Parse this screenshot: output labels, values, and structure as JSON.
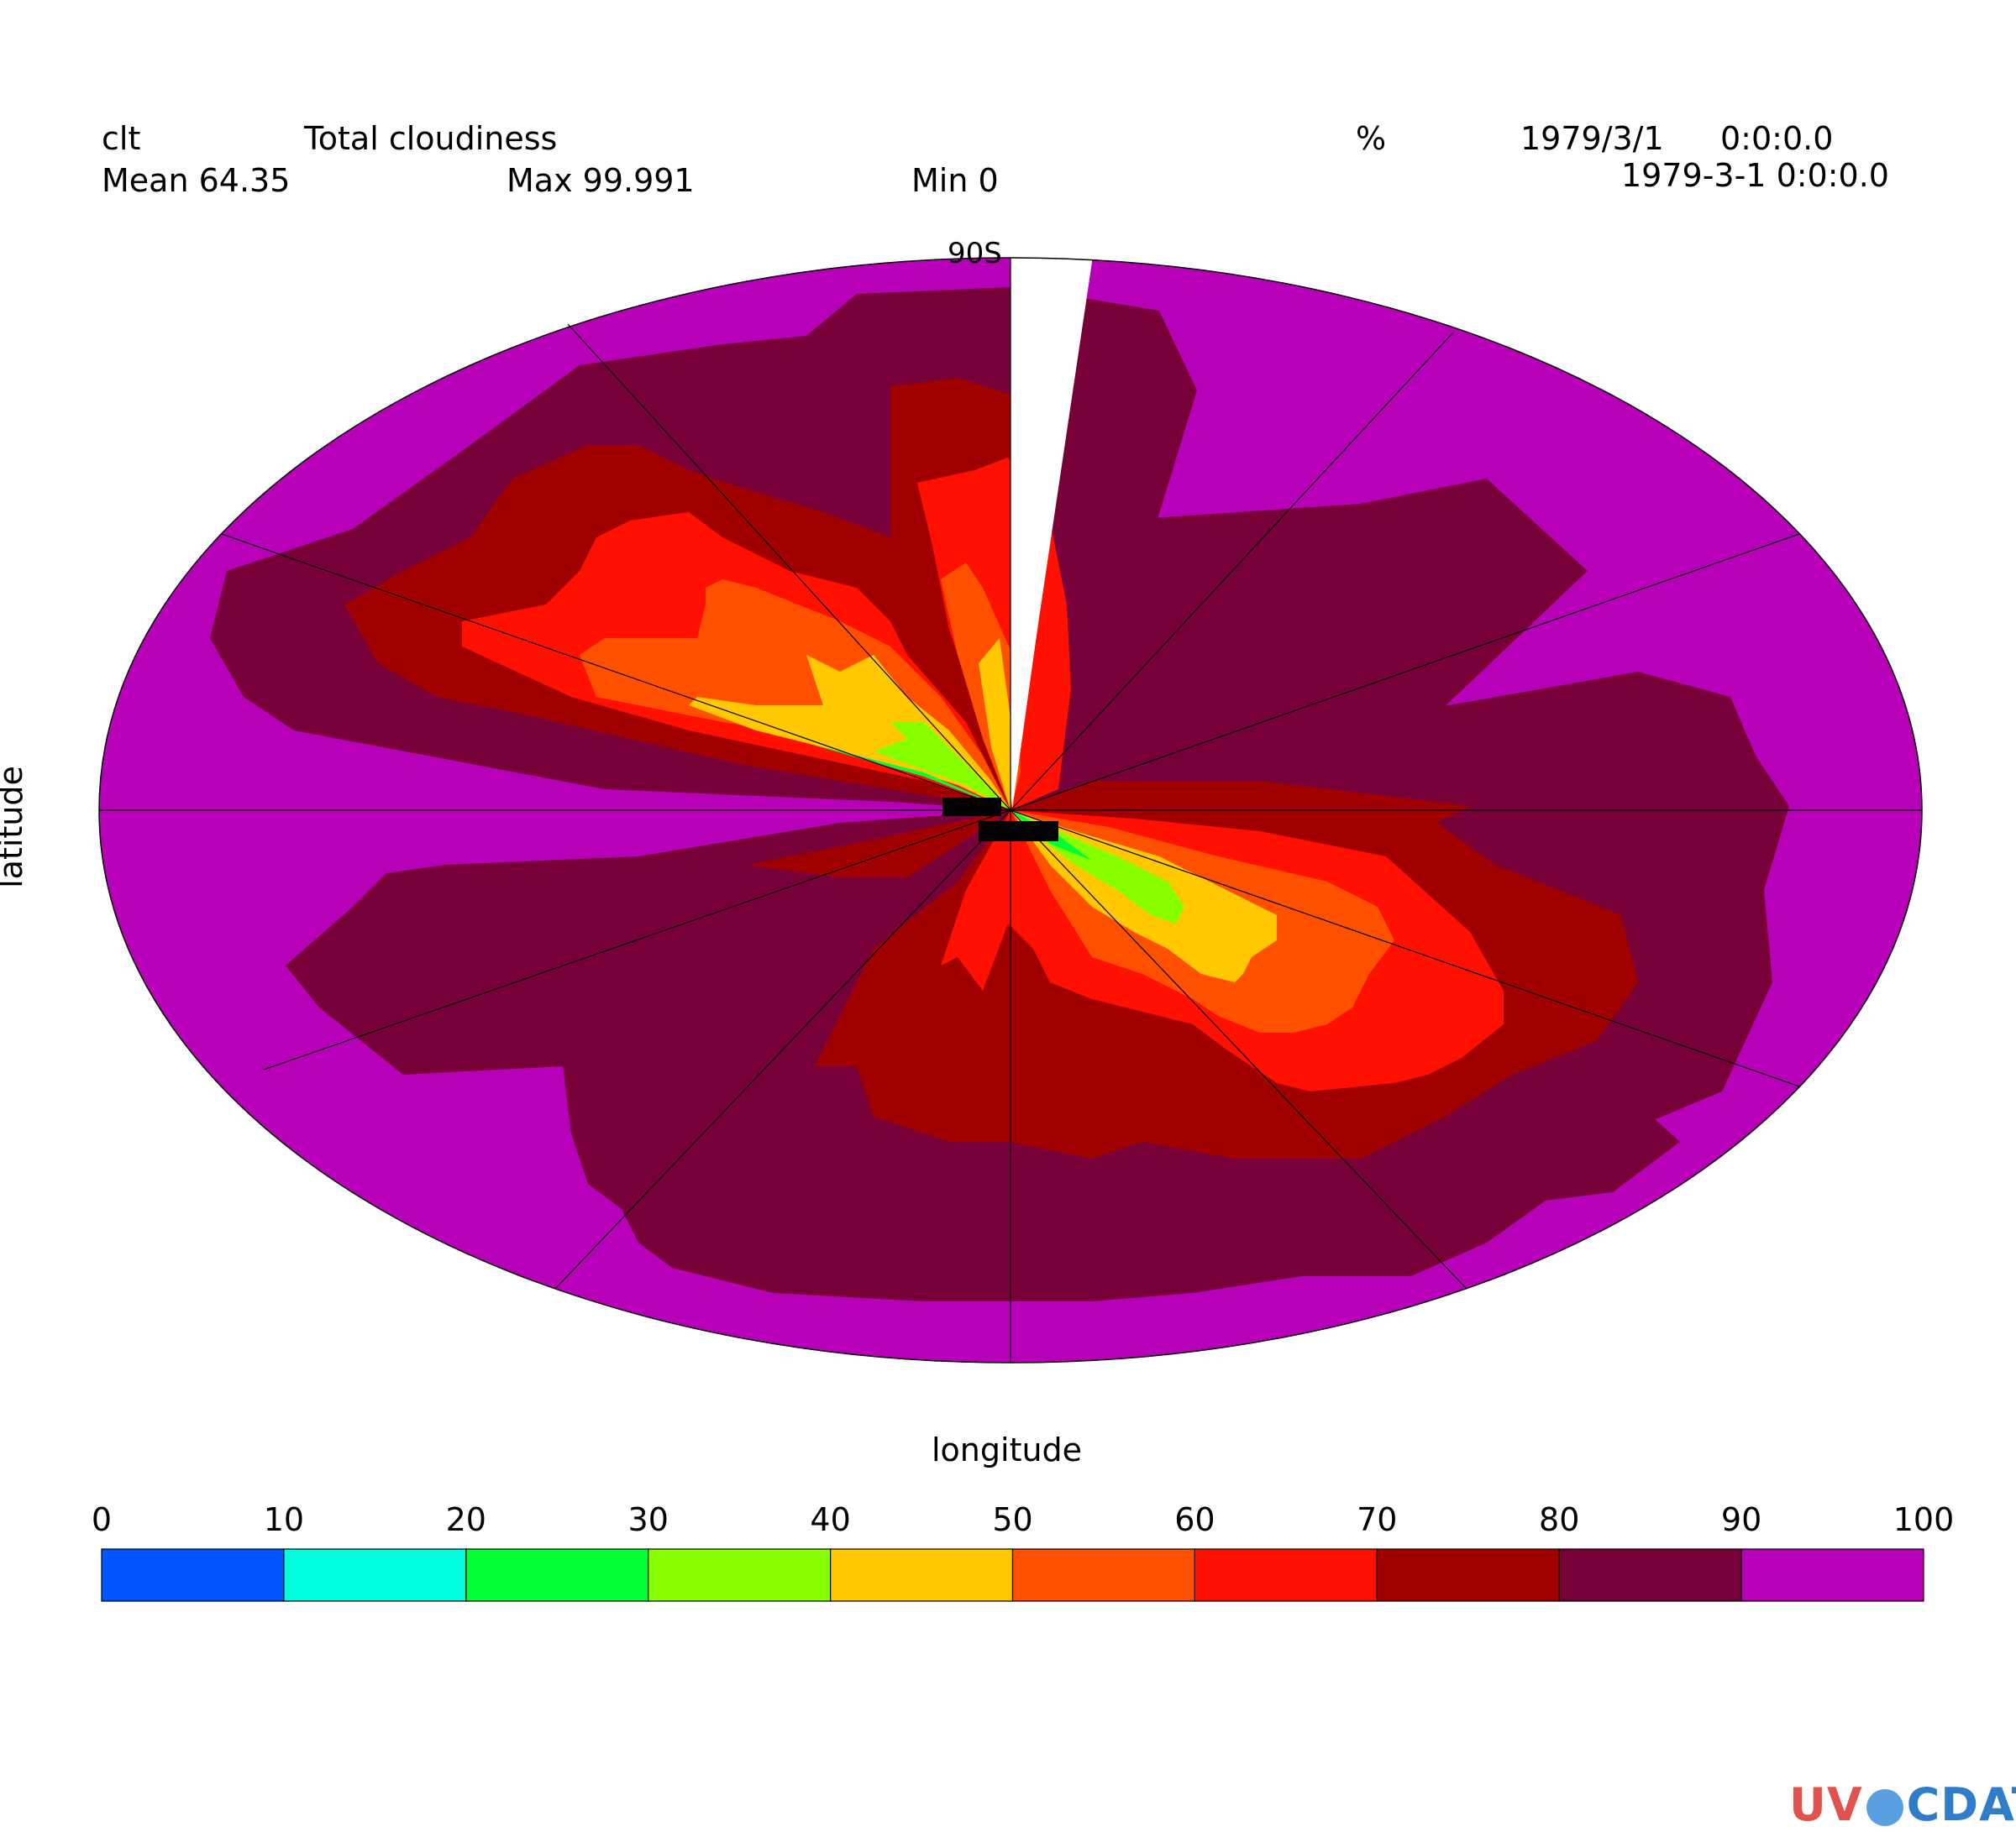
{
  "header": {
    "var_name": "clt",
    "long_name": "Total cloudiness",
    "units": "%",
    "date1": "1979/3/1",
    "time1": "0:0:0.0",
    "date2": "1979-3-1 0:0:0.0",
    "mean": "Mean 64.35",
    "max": "Max 99.991",
    "min": "Min 0"
  },
  "axes": {
    "ylabel": "latitude",
    "xlabel": "longitude",
    "pole_label": "90S"
  },
  "logo": {
    "text_a": "UV",
    "text_b": "CDAT",
    "color_a": "#e0524d",
    "color_b": "#2f7dc8"
  },
  "chart_data": {
    "type": "heatmap",
    "projection": "polar (south pole)",
    "variable": "clt",
    "units": "%",
    "levels": [
      0,
      10,
      20,
      30,
      40,
      50,
      60,
      70,
      80,
      90,
      100
    ],
    "colorbar_labels": [
      "0",
      "10",
      "20",
      "30",
      "40",
      "50",
      "60",
      "70",
      "80",
      "90",
      "100"
    ],
    "colors": [
      "#0055ff",
      "#00ffdd",
      "#00ff33",
      "#88ff00",
      "#ffc800",
      "#ff5000",
      "#ff1000",
      "#a00000",
      "#780038",
      "#b800b8"
    ],
    "stats": {
      "mean": 64.35,
      "max": 99.991,
      "min": 0
    },
    "grid": true,
    "colorbar_position": "bottom"
  }
}
